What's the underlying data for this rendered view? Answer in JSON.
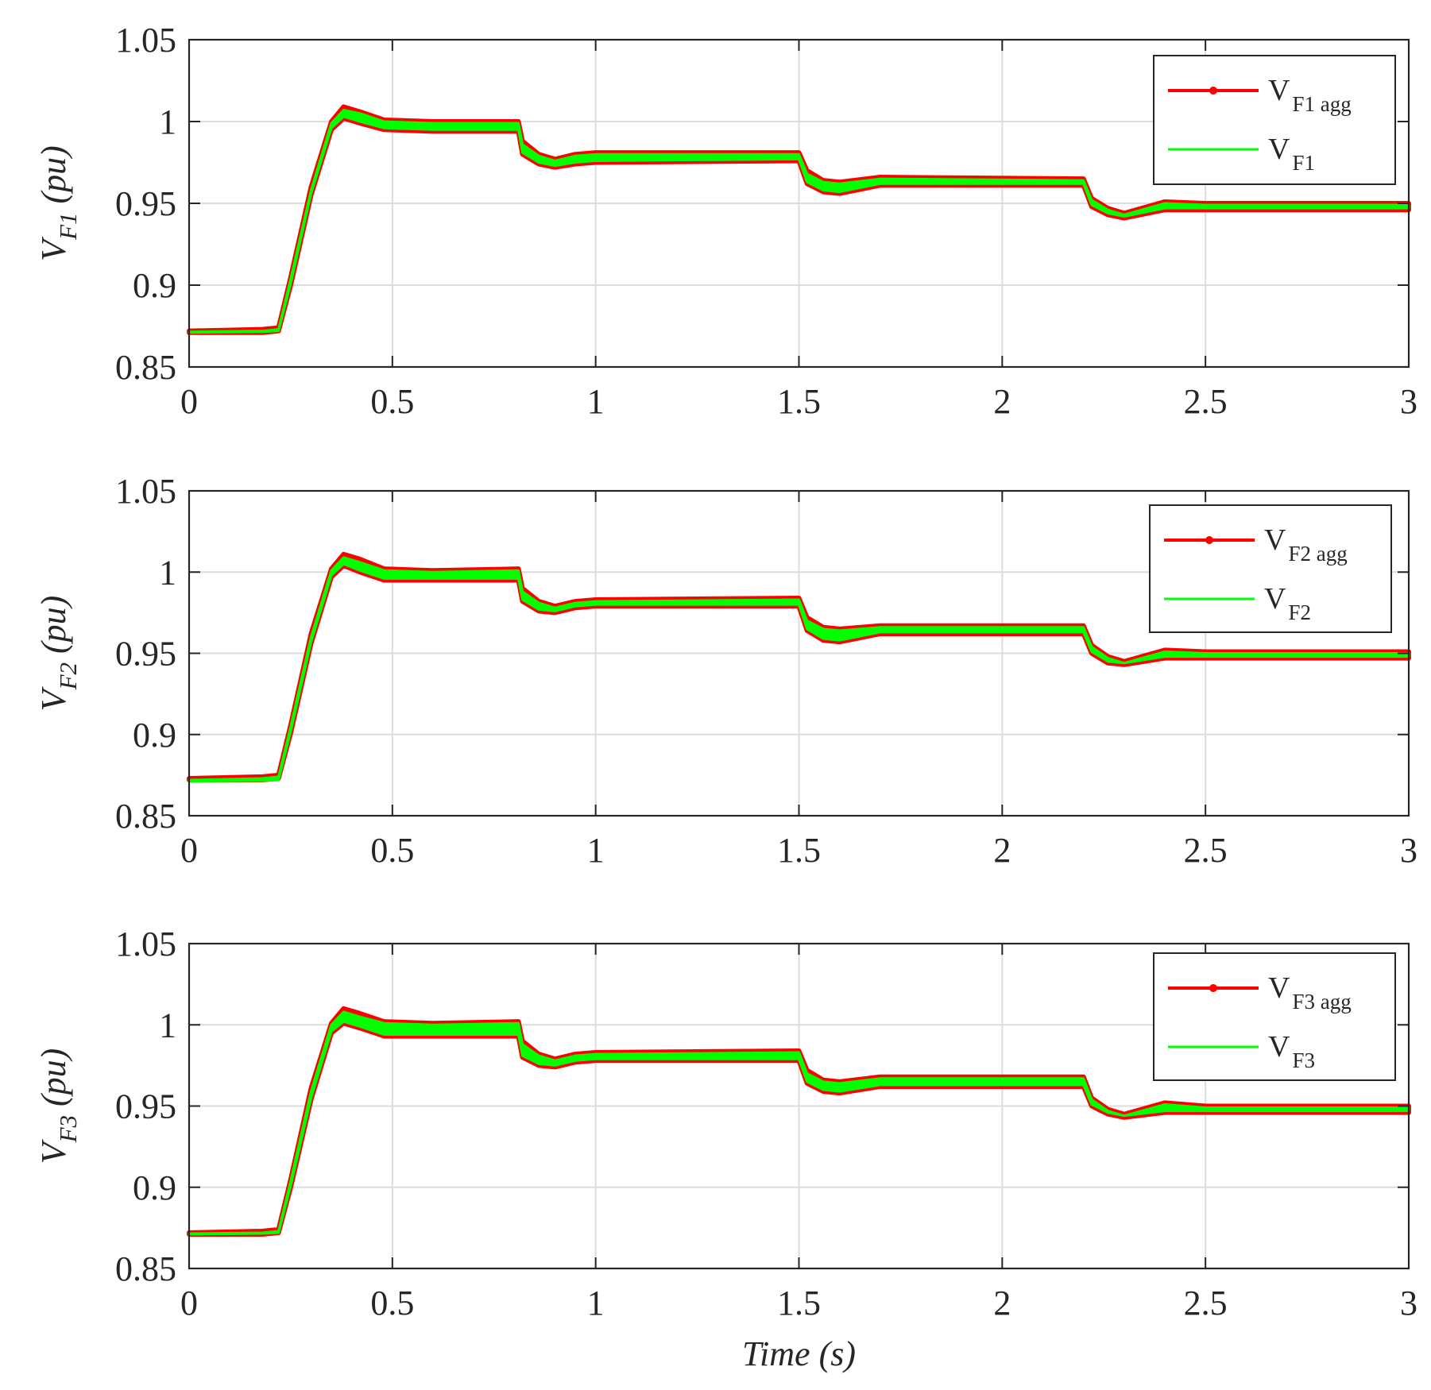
{
  "chart_data": [
    {
      "type": "line",
      "ylabel_main": "V",
      "ylabel_sub": "F1",
      "ylabel_unit": "(pu)",
      "xlabel": "",
      "xlim": [
        0,
        3
      ],
      "ylim": [
        0.85,
        1.05
      ],
      "xticks": [
        0,
        0.5,
        1,
        1.5,
        2,
        2.5,
        3
      ],
      "xtick_labels": [
        "0",
        "0.5",
        "1",
        "1.5",
        "2",
        "2.5",
        "3"
      ],
      "yticks": [
        0.85,
        0.9,
        0.95,
        1,
        1.05
      ],
      "ytick_labels": [
        "0.85",
        "0.9",
        "0.95",
        "1",
        "1.05"
      ],
      "grid": true,
      "legend_position": "top-right",
      "series": [
        {
          "name_main": "V",
          "name_sub": "F1 agg",
          "color": "#ff0000",
          "marker": "dot",
          "x": [
            0,
            0.18,
            0.22,
            0.25,
            0.3,
            0.35,
            0.38,
            0.42,
            0.48,
            0.6,
            0.81,
            0.82,
            0.86,
            0.9,
            0.95,
            1.0,
            1.5,
            1.52,
            1.56,
            1.6,
            1.7,
            2.2,
            2.22,
            2.26,
            2.3,
            2.4,
            2.5,
            3.0
          ],
          "y_upper": [
            0.872,
            0.873,
            0.874,
            0.905,
            0.96,
            1.0,
            1.009,
            1.006,
            1.001,
            1.0,
            1.0,
            0.988,
            0.98,
            0.977,
            0.98,
            0.981,
            0.981,
            0.97,
            0.964,
            0.963,
            0.966,
            0.965,
            0.953,
            0.947,
            0.944,
            0.951,
            0.95,
            0.95
          ],
          "y_lower": [
            0.871,
            0.871,
            0.872,
            0.9,
            0.955,
            0.995,
            1.002,
            0.999,
            0.995,
            0.994,
            0.994,
            0.98,
            0.974,
            0.972,
            0.974,
            0.975,
            0.976,
            0.962,
            0.957,
            0.956,
            0.961,
            0.961,
            0.948,
            0.943,
            0.941,
            0.946,
            0.946,
            0.946
          ]
        },
        {
          "name_main": "V",
          "name_sub": "F1",
          "color": "#00ff00",
          "marker": "none",
          "x": [
            0,
            0.18,
            0.22,
            0.25,
            0.3,
            0.35,
            0.38,
            0.42,
            0.48,
            0.6,
            0.81,
            0.82,
            0.86,
            0.9,
            0.95,
            1.0,
            1.5,
            1.52,
            1.56,
            1.6,
            1.7,
            2.2,
            2.22,
            2.26,
            2.3,
            2.4,
            2.5,
            3.0
          ],
          "y_upper": [
            0.8715,
            0.872,
            0.873,
            0.904,
            0.958,
            0.999,
            1.007,
            1.005,
            1.0,
            0.999,
            0.999,
            0.986,
            0.979,
            0.976,
            0.979,
            0.98,
            0.98,
            0.968,
            0.963,
            0.962,
            0.965,
            0.964,
            0.952,
            0.946,
            0.943,
            0.95,
            0.949,
            0.949
          ],
          "y_lower": [
            0.871,
            0.8715,
            0.872,
            0.901,
            0.956,
            0.996,
            1.003,
            1.0,
            0.996,
            0.995,
            0.995,
            0.981,
            0.975,
            0.973,
            0.975,
            0.976,
            0.977,
            0.963,
            0.958,
            0.957,
            0.962,
            0.962,
            0.949,
            0.944,
            0.942,
            0.947,
            0.947,
            0.947
          ]
        }
      ]
    },
    {
      "type": "line",
      "ylabel_main": "V",
      "ylabel_sub": "F2",
      "ylabel_unit": "(pu)",
      "xlabel": "",
      "xlim": [
        0,
        3
      ],
      "ylim": [
        0.85,
        1.05
      ],
      "xticks": [
        0,
        0.5,
        1,
        1.5,
        2,
        2.5,
        3
      ],
      "xtick_labels": [
        "0",
        "0.5",
        "1",
        "1.5",
        "2",
        "2.5",
        "3"
      ],
      "yticks": [
        0.85,
        0.9,
        0.95,
        1,
        1.05
      ],
      "ytick_labels": [
        "0.85",
        "0.9",
        "0.95",
        "1",
        "1.05"
      ],
      "grid": true,
      "legend_position": "top-right",
      "series": [
        {
          "name_main": "V",
          "name_sub": "F2 agg",
          "color": "#ff0000",
          "marker": "dot",
          "x": [
            0,
            0.18,
            0.22,
            0.25,
            0.3,
            0.35,
            0.38,
            0.42,
            0.48,
            0.6,
            0.81,
            0.82,
            0.86,
            0.9,
            0.95,
            1.0,
            1.5,
            1.52,
            1.56,
            1.6,
            1.7,
            2.2,
            2.22,
            2.26,
            2.3,
            2.4,
            2.5,
            3.0
          ],
          "y_upper": [
            0.873,
            0.874,
            0.875,
            0.906,
            0.962,
            1.002,
            1.011,
            1.008,
            1.002,
            1.001,
            1.002,
            0.99,
            0.982,
            0.979,
            0.982,
            0.983,
            0.984,
            0.972,
            0.966,
            0.965,
            0.967,
            0.967,
            0.955,
            0.948,
            0.945,
            0.952,
            0.951,
            0.951
          ],
          "y_lower": [
            0.872,
            0.872,
            0.873,
            0.901,
            0.956,
            0.997,
            1.004,
            1.0,
            0.995,
            0.995,
            0.995,
            0.982,
            0.976,
            0.975,
            0.978,
            0.979,
            0.979,
            0.964,
            0.958,
            0.957,
            0.962,
            0.962,
            0.95,
            0.944,
            0.943,
            0.947,
            0.947,
            0.947
          ]
        },
        {
          "name_main": "V",
          "name_sub": "F2",
          "color": "#00ff00",
          "marker": "none",
          "x": [
            0,
            0.18,
            0.22,
            0.25,
            0.3,
            0.35,
            0.38,
            0.42,
            0.48,
            0.6,
            0.81,
            0.82,
            0.86,
            0.9,
            0.95,
            1.0,
            1.5,
            1.52,
            1.56,
            1.6,
            1.7,
            2.2,
            2.22,
            2.26,
            2.3,
            2.4,
            2.5,
            3.0
          ],
          "y_upper": [
            0.872,
            0.873,
            0.874,
            0.905,
            0.96,
            1.001,
            1.009,
            1.006,
            1.001,
            1.0,
            1.001,
            0.988,
            0.981,
            0.978,
            0.981,
            0.982,
            0.983,
            0.97,
            0.965,
            0.964,
            0.966,
            0.966,
            0.954,
            0.947,
            0.944,
            0.951,
            0.95,
            0.95
          ],
          "y_lower": [
            0.8712,
            0.8715,
            0.872,
            0.902,
            0.957,
            0.998,
            1.005,
            1.001,
            0.996,
            0.996,
            0.996,
            0.983,
            0.977,
            0.976,
            0.979,
            0.98,
            0.98,
            0.965,
            0.959,
            0.958,
            0.963,
            0.963,
            0.951,
            0.945,
            0.944,
            0.948,
            0.948,
            0.948
          ]
        }
      ]
    },
    {
      "type": "line",
      "ylabel_main": "V",
      "ylabel_sub": "F3",
      "ylabel_unit": "(pu)",
      "xlabel": "Time (s)",
      "xlim": [
        0,
        3
      ],
      "ylim": [
        0.85,
        1.05
      ],
      "xticks": [
        0,
        0.5,
        1,
        1.5,
        2,
        2.5,
        3
      ],
      "xtick_labels": [
        "0",
        "0.5",
        "1",
        "1.5",
        "2",
        "2.5",
        "3"
      ],
      "yticks": [
        0.85,
        0.9,
        0.95,
        1,
        1.05
      ],
      "ytick_labels": [
        "0.85",
        "0.9",
        "0.95",
        "1",
        "1.05"
      ],
      "grid": true,
      "legend_position": "top-right",
      "series": [
        {
          "name_main": "V",
          "name_sub": "F3 agg",
          "color": "#ff0000",
          "marker": "dot",
          "x": [
            0,
            0.18,
            0.22,
            0.25,
            0.3,
            0.35,
            0.38,
            0.42,
            0.48,
            0.6,
            0.81,
            0.82,
            0.86,
            0.9,
            0.95,
            1.0,
            1.5,
            1.52,
            1.56,
            1.6,
            1.7,
            2.2,
            2.22,
            2.26,
            2.3,
            2.4,
            2.5,
            3.0
          ],
          "y_upper": [
            0.872,
            0.873,
            0.874,
            0.905,
            0.961,
            1.001,
            1.01,
            1.007,
            1.002,
            1.001,
            1.002,
            0.99,
            0.982,
            0.979,
            0.982,
            0.983,
            0.984,
            0.972,
            0.966,
            0.965,
            0.968,
            0.968,
            0.955,
            0.948,
            0.945,
            0.952,
            0.95,
            0.95
          ],
          "y_lower": [
            0.871,
            0.871,
            0.872,
            0.9,
            0.954,
            0.995,
            1.001,
            0.998,
            0.993,
            0.993,
            0.993,
            0.98,
            0.975,
            0.974,
            0.977,
            0.978,
            0.978,
            0.964,
            0.959,
            0.958,
            0.962,
            0.962,
            0.95,
            0.945,
            0.943,
            0.946,
            0.946,
            0.946
          ]
        },
        {
          "name_main": "V",
          "name_sub": "F3",
          "color": "#00ff00",
          "marker": "none",
          "x": [
            0,
            0.18,
            0.22,
            0.25,
            0.3,
            0.35,
            0.38,
            0.42,
            0.48,
            0.6,
            0.81,
            0.82,
            0.86,
            0.9,
            0.95,
            1.0,
            1.5,
            1.52,
            1.56,
            1.6,
            1.7,
            2.2,
            2.22,
            2.26,
            2.3,
            2.4,
            2.5,
            3.0
          ],
          "y_upper": [
            0.8715,
            0.872,
            0.873,
            0.904,
            0.959,
            1.0,
            1.008,
            1.005,
            1.001,
            1.0,
            1.001,
            0.988,
            0.981,
            0.978,
            0.981,
            0.982,
            0.983,
            0.97,
            0.965,
            0.964,
            0.967,
            0.967,
            0.954,
            0.947,
            0.944,
            0.951,
            0.949,
            0.949
          ],
          "y_lower": [
            0.871,
            0.8715,
            0.872,
            0.901,
            0.955,
            0.996,
            1.002,
            0.999,
            0.994,
            0.994,
            0.994,
            0.981,
            0.976,
            0.975,
            0.978,
            0.979,
            0.979,
            0.965,
            0.96,
            0.959,
            0.963,
            0.963,
            0.951,
            0.946,
            0.944,
            0.947,
            0.947,
            0.947
          ]
        }
      ]
    }
  ]
}
